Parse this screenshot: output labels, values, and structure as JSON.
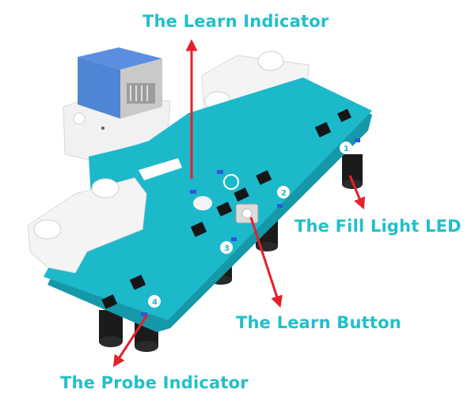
{
  "colors": {
    "label": "#22bfc9",
    "arrow": "#e5202a",
    "board": "#1cb9cb",
    "board_edge": "#1598aa",
    "holder": "#f1f1f1",
    "probe": "#1b1b1b",
    "connector": "#4f86d3",
    "chip": "#161616"
  },
  "labels": {
    "learn_indicator": "The Learn Indicator",
    "fill_light_led": "The Fill Light LED",
    "learn_button": "The Learn Button",
    "probe_indicator": "The Probe Indicator"
  },
  "silkscreen": [
    "1",
    "2",
    "3",
    "4"
  ],
  "icons": [
    "rj11-connector-icon",
    "pushbutton-icon",
    "led-icon",
    "mounting-hole-icon"
  ]
}
